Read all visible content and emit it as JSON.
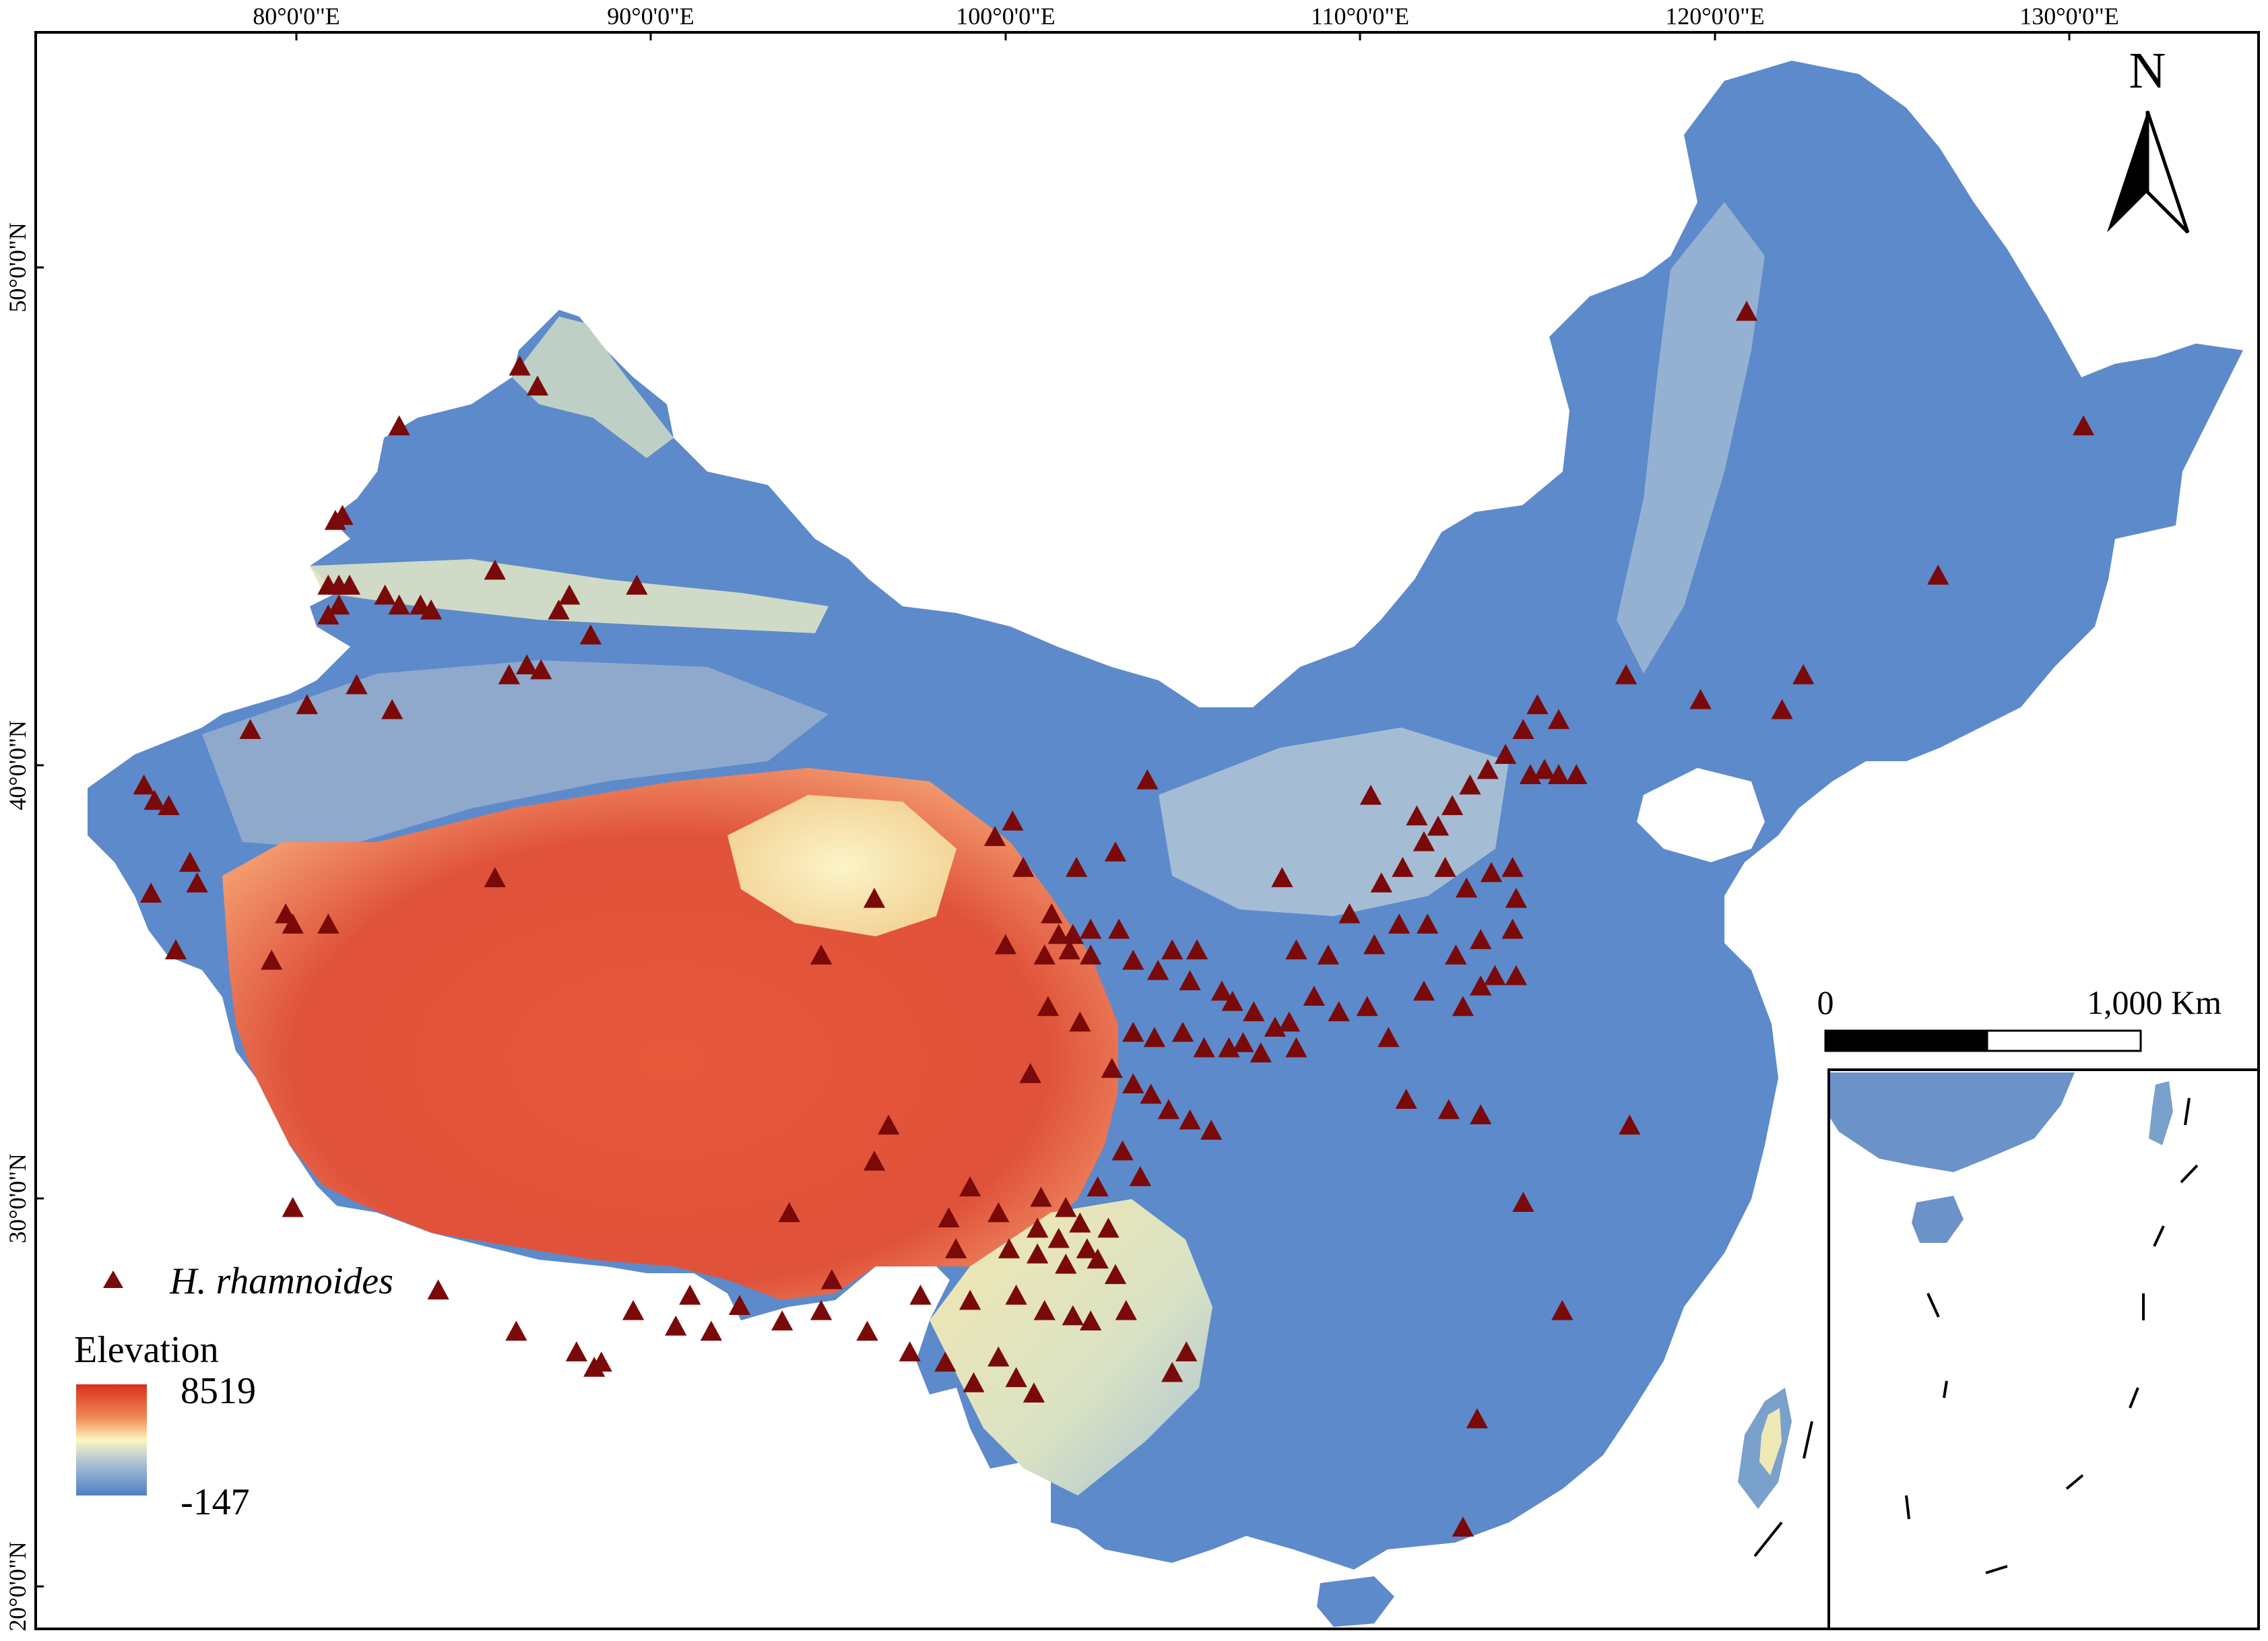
{
  "map": {
    "longitude_labels": [
      "80°0'0\"E",
      "90°0'0\"E",
      "100°0'0\"E",
      "110°0'0\"E",
      "120°0'0\"E",
      "130°0'0\"E"
    ],
    "latitude_labels": [
      "50°0'0\"N",
      "40°0'0\"N",
      "30°0'0\"N",
      "20°0'0\"N"
    ],
    "north_arrow": {
      "label": "N",
      "icon": "north-arrow-icon"
    },
    "scale_bar": {
      "start_label": "0",
      "end_label": "1,000 Km"
    },
    "legend": {
      "point_label": "H. rhamnoides",
      "point_icon": "triangle-marker-icon",
      "point_color": "#7a0a0a",
      "elevation_title": "Elevation",
      "elevation_max": "8519",
      "elevation_min": "-147",
      "ramp_colors": [
        "#d7301f",
        "#f08a57",
        "#fbf6c2",
        "#a7bfd4",
        "#4f7fc3"
      ]
    },
    "inset": {
      "name": "south-china-sea-inset"
    },
    "occurrence_points_lonlat": [
      [
        86.3,
        48.0
      ],
      [
        86.8,
        47.6
      ],
      [
        82.9,
        46.8
      ],
      [
        81.1,
        44.9
      ],
      [
        81.3,
        45.0
      ],
      [
        85.6,
        43.9
      ],
      [
        80.9,
        43.6
      ],
      [
        81.2,
        43.6
      ],
      [
        81.5,
        43.6
      ],
      [
        80.9,
        43.0
      ],
      [
        81.2,
        43.2
      ],
      [
        82.5,
        43.4
      ],
      [
        82.9,
        43.2
      ],
      [
        83.5,
        43.2
      ],
      [
        83.8,
        43.1
      ],
      [
        89.6,
        43.6
      ],
      [
        87.7,
        43.4
      ],
      [
        87.4,
        43.1
      ],
      [
        88.3,
        42.6
      ],
      [
        86.5,
        42.0
      ],
      [
        86.0,
        41.8
      ],
      [
        86.9,
        41.9
      ],
      [
        81.7,
        41.6
      ],
      [
        82.7,
        41.1
      ],
      [
        80.3,
        41.2
      ],
      [
        78.7,
        40.7
      ],
      [
        75.7,
        39.6
      ],
      [
        76.0,
        39.3
      ],
      [
        76.4,
        39.2
      ],
      [
        77.0,
        38.1
      ],
      [
        77.2,
        37.7
      ],
      [
        75.9,
        37.5
      ],
      [
        79.7,
        37.1
      ],
      [
        79.9,
        36.9
      ],
      [
        80.9,
        36.9
      ],
      [
        76.6,
        36.4
      ],
      [
        79.3,
        36.2
      ],
      [
        85.6,
        37.8
      ],
      [
        94.8,
        36.3
      ],
      [
        96.3,
        37.4
      ],
      [
        99.7,
        38.6
      ],
      [
        100.2,
        38.9
      ],
      [
        100.5,
        38.0
      ],
      [
        102.0,
        38.0
      ],
      [
        103.1,
        38.3
      ],
      [
        104.0,
        39.7
      ],
      [
        101.3,
        37.1
      ],
      [
        101.5,
        36.7
      ],
      [
        101.9,
        36.7
      ],
      [
        102.4,
        36.8
      ],
      [
        103.2,
        36.8
      ],
      [
        100.0,
        36.5
      ],
      [
        101.1,
        36.3
      ],
      [
        101.8,
        36.4
      ],
      [
        102.4,
        36.3
      ],
      [
        103.6,
        36.2
      ],
      [
        104.7,
        36.4
      ],
      [
        105.4,
        36.4
      ],
      [
        104.3,
        36.0
      ],
      [
        105.2,
        35.8
      ],
      [
        106.1,
        35.6
      ],
      [
        106.4,
        35.4
      ],
      [
        107.0,
        35.2
      ],
      [
        107.6,
        34.9
      ],
      [
        108.0,
        35.0
      ],
      [
        106.7,
        34.6
      ],
      [
        101.2,
        35.3
      ],
      [
        102.1,
        35.0
      ],
      [
        103.6,
        34.8
      ],
      [
        104.2,
        34.7
      ],
      [
        105.0,
        34.8
      ],
      [
        105.6,
        34.5
      ],
      [
        106.3,
        34.5
      ],
      [
        107.2,
        34.4
      ],
      [
        108.2,
        34.5
      ],
      [
        100.7,
        34.0
      ],
      [
        103.0,
        34.1
      ],
      [
        103.6,
        33.8
      ],
      [
        104.1,
        33.6
      ],
      [
        104.6,
        33.3
      ],
      [
        105.2,
        33.1
      ],
      [
        105.8,
        32.9
      ],
      [
        96.7,
        33.0
      ],
      [
        96.3,
        32.3
      ],
      [
        99.0,
        31.8
      ],
      [
        101.0,
        31.6
      ],
      [
        101.7,
        31.4
      ],
      [
        102.1,
        31.1
      ],
      [
        102.6,
        31.8
      ],
      [
        103.3,
        32.5
      ],
      [
        103.8,
        32.0
      ],
      [
        98.4,
        31.2
      ],
      [
        99.8,
        31.3
      ],
      [
        100.9,
        31.0
      ],
      [
        101.5,
        30.8
      ],
      [
        102.3,
        30.6
      ],
      [
        102.9,
        31.0
      ],
      [
        93.9,
        31.3
      ],
      [
        98.6,
        30.6
      ],
      [
        100.1,
        30.6
      ],
      [
        100.9,
        30.5
      ],
      [
        101.7,
        30.3
      ],
      [
        102.6,
        30.4
      ],
      [
        103.1,
        30.1
      ],
      [
        95.1,
        30.0
      ],
      [
        97.6,
        29.7
      ],
      [
        99.0,
        29.6
      ],
      [
        100.3,
        29.7
      ],
      [
        101.1,
        29.4
      ],
      [
        101.9,
        29.3
      ],
      [
        102.4,
        29.2
      ],
      [
        91.1,
        29.7
      ],
      [
        92.5,
        29.5
      ],
      [
        93.7,
        29.2
      ],
      [
        94.8,
        29.4
      ],
      [
        96.1,
        29.0
      ],
      [
        97.3,
        28.6
      ],
      [
        98.3,
        28.4
      ],
      [
        99.1,
        28.0
      ],
      [
        99.8,
        28.5
      ],
      [
        100.3,
        28.1
      ],
      [
        100.8,
        27.8
      ],
      [
        103.4,
        29.4
      ],
      [
        104.7,
        28.2
      ],
      [
        105.1,
        28.6
      ],
      [
        89.5,
        29.4
      ],
      [
        90.7,
        29.1
      ],
      [
        91.7,
        29.0
      ],
      [
        88.4,
        28.3
      ],
      [
        84.0,
        29.8
      ],
      [
        86.2,
        29.0
      ],
      [
        87.9,
        28.6
      ],
      [
        88.6,
        28.4
      ],
      [
        79.9,
        31.4
      ],
      [
        107.8,
        37.8
      ],
      [
        108.2,
        36.4
      ],
      [
        108.7,
        35.5
      ],
      [
        109.1,
        36.3
      ],
      [
        109.7,
        37.1
      ],
      [
        110.4,
        36.5
      ],
      [
        110.6,
        37.7
      ],
      [
        111.2,
        38.0
      ],
      [
        111.8,
        38.5
      ],
      [
        112.2,
        38.8
      ],
      [
        112.6,
        39.2
      ],
      [
        113.1,
        39.6
      ],
      [
        113.6,
        39.9
      ],
      [
        114.1,
        40.2
      ],
      [
        114.6,
        40.7
      ],
      [
        115.0,
        41.2
      ],
      [
        115.6,
        40.9
      ],
      [
        110.3,
        39.4
      ],
      [
        111.6,
        39.0
      ],
      [
        112.4,
        38.0
      ],
      [
        113.0,
        37.6
      ],
      [
        113.7,
        37.9
      ],
      [
        114.3,
        38.0
      ],
      [
        111.1,
        36.9
      ],
      [
        111.9,
        36.9
      ],
      [
        112.7,
        36.3
      ],
      [
        113.4,
        36.6
      ],
      [
        113.8,
        35.9
      ],
      [
        114.4,
        35.9
      ],
      [
        114.3,
        36.8
      ],
      [
        114.4,
        37.4
      ],
      [
        111.8,
        35.6
      ],
      [
        112.9,
        35.3
      ],
      [
        113.4,
        35.7
      ],
      [
        109.4,
        35.2
      ],
      [
        110.2,
        35.3
      ],
      [
        110.8,
        34.7
      ],
      [
        111.3,
        33.5
      ],
      [
        112.5,
        33.3
      ],
      [
        113.4,
        33.2
      ],
      [
        114.6,
        31.5
      ],
      [
        117.6,
        33.0
      ],
      [
        115.7,
        29.4
      ],
      [
        113.3,
        27.3
      ],
      [
        112.9,
        25.2
      ],
      [
        114.8,
        39.8
      ],
      [
        115.2,
        39.9
      ],
      [
        115.6,
        39.8
      ],
      [
        116.1,
        39.8
      ],
      [
        117.5,
        41.8
      ],
      [
        119.6,
        41.3
      ],
      [
        121.9,
        41.1
      ],
      [
        122.5,
        41.8
      ],
      [
        120.9,
        49.1
      ],
      [
        130.4,
        46.8
      ],
      [
        126.3,
        43.8
      ]
    ]
  }
}
